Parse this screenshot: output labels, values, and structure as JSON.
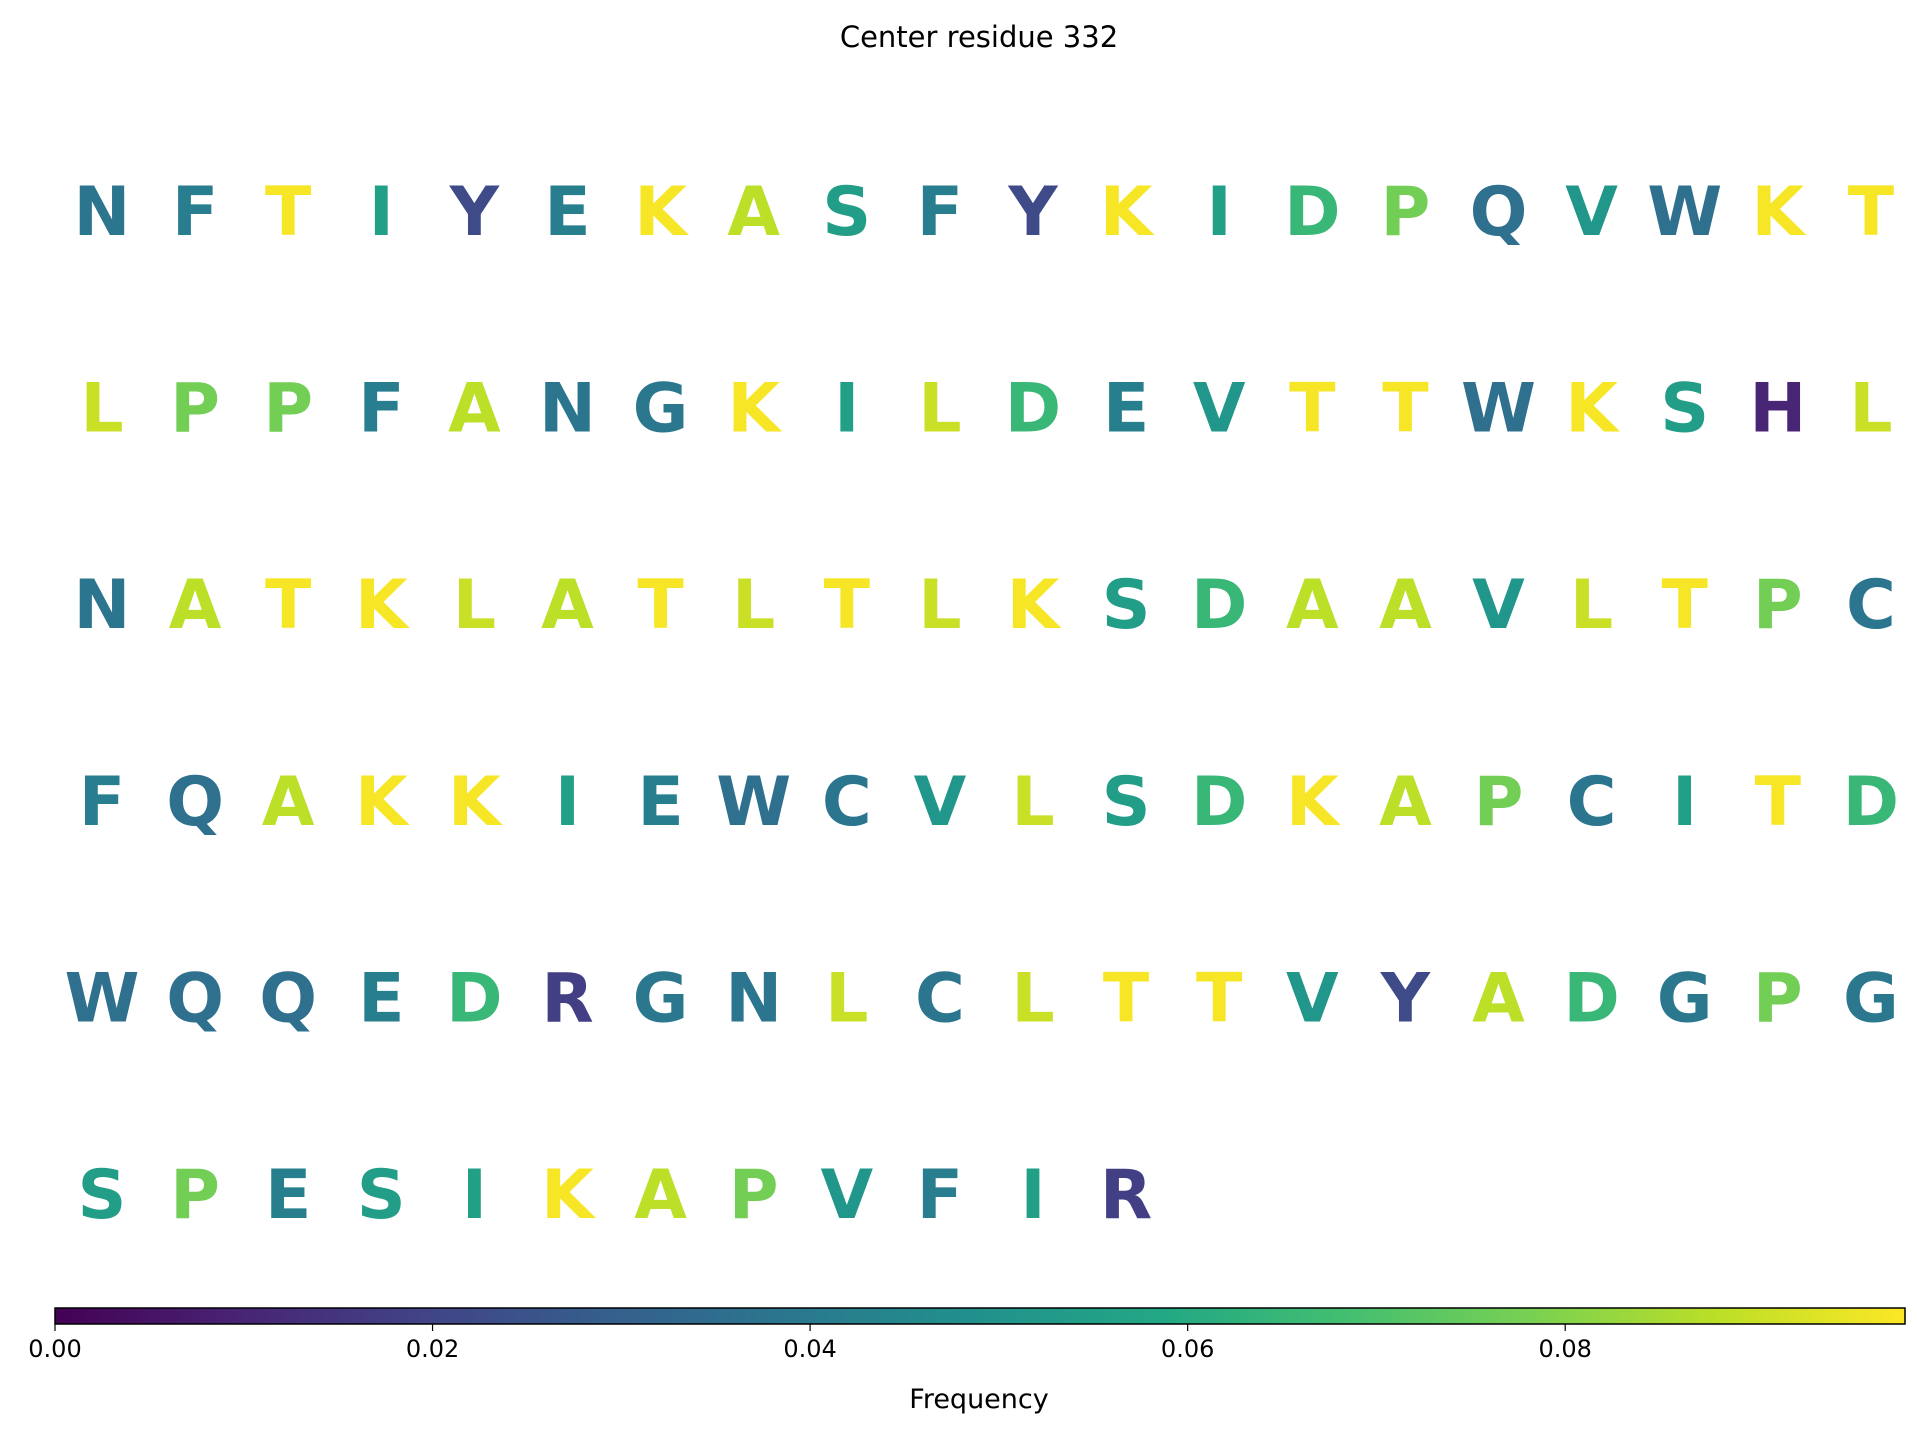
{
  "chart_data": {
    "type": "heatmap",
    "title": "Center residue 332",
    "columns": 20,
    "residues": [
      {
        "aa": "N",
        "value": 0.038
      },
      {
        "aa": "F",
        "value": 0.041
      },
      {
        "aa": "T",
        "value": 0.097
      },
      {
        "aa": "I",
        "value": 0.055
      },
      {
        "aa": "Y",
        "value": 0.022
      },
      {
        "aa": "E",
        "value": 0.042
      },
      {
        "aa": "K",
        "value": 0.097
      },
      {
        "aa": "A",
        "value": 0.088
      },
      {
        "aa": "S",
        "value": 0.054
      },
      {
        "aa": "F",
        "value": 0.041
      },
      {
        "aa": "Y",
        "value": 0.022
      },
      {
        "aa": "K",
        "value": 0.097
      },
      {
        "aa": "I",
        "value": 0.055
      },
      {
        "aa": "D",
        "value": 0.065
      },
      {
        "aa": "P",
        "value": 0.077
      },
      {
        "aa": "Q",
        "value": 0.036
      },
      {
        "aa": "V",
        "value": 0.051
      },
      {
        "aa": "W",
        "value": 0.036
      },
      {
        "aa": "K",
        "value": 0.097
      },
      {
        "aa": "T",
        "value": 0.097
      },
      {
        "aa": "L",
        "value": 0.09
      },
      {
        "aa": "P",
        "value": 0.077
      },
      {
        "aa": "P",
        "value": 0.077
      },
      {
        "aa": "F",
        "value": 0.041
      },
      {
        "aa": "A",
        "value": 0.088
      },
      {
        "aa": "N",
        "value": 0.038
      },
      {
        "aa": "G",
        "value": 0.039
      },
      {
        "aa": "K",
        "value": 0.097
      },
      {
        "aa": "I",
        "value": 0.055
      },
      {
        "aa": "L",
        "value": 0.09
      },
      {
        "aa": "D",
        "value": 0.065
      },
      {
        "aa": "E",
        "value": 0.042
      },
      {
        "aa": "V",
        "value": 0.051
      },
      {
        "aa": "T",
        "value": 0.097
      },
      {
        "aa": "T",
        "value": 0.097
      },
      {
        "aa": "W",
        "value": 0.036
      },
      {
        "aa": "K",
        "value": 0.097
      },
      {
        "aa": "S",
        "value": 0.054
      },
      {
        "aa": "H",
        "value": 0.01
      },
      {
        "aa": "L",
        "value": 0.09
      },
      {
        "aa": "N",
        "value": 0.038
      },
      {
        "aa": "A",
        "value": 0.088
      },
      {
        "aa": "T",
        "value": 0.097
      },
      {
        "aa": "K",
        "value": 0.097
      },
      {
        "aa": "L",
        "value": 0.09
      },
      {
        "aa": "A",
        "value": 0.088
      },
      {
        "aa": "T",
        "value": 0.097
      },
      {
        "aa": "L",
        "value": 0.09
      },
      {
        "aa": "T",
        "value": 0.097
      },
      {
        "aa": "L",
        "value": 0.09
      },
      {
        "aa": "K",
        "value": 0.097
      },
      {
        "aa": "S",
        "value": 0.054
      },
      {
        "aa": "D",
        "value": 0.065
      },
      {
        "aa": "A",
        "value": 0.088
      },
      {
        "aa": "A",
        "value": 0.088
      },
      {
        "aa": "V",
        "value": 0.051
      },
      {
        "aa": "L",
        "value": 0.09
      },
      {
        "aa": "T",
        "value": 0.097
      },
      {
        "aa": "P",
        "value": 0.077
      },
      {
        "aa": "C",
        "value": 0.038
      },
      {
        "aa": "F",
        "value": 0.041
      },
      {
        "aa": "Q",
        "value": 0.036
      },
      {
        "aa": "A",
        "value": 0.088
      },
      {
        "aa": "K",
        "value": 0.097
      },
      {
        "aa": "K",
        "value": 0.097
      },
      {
        "aa": "I",
        "value": 0.055
      },
      {
        "aa": "E",
        "value": 0.042
      },
      {
        "aa": "W",
        "value": 0.036
      },
      {
        "aa": "C",
        "value": 0.038
      },
      {
        "aa": "V",
        "value": 0.051
      },
      {
        "aa": "L",
        "value": 0.09
      },
      {
        "aa": "S",
        "value": 0.054
      },
      {
        "aa": "D",
        "value": 0.065
      },
      {
        "aa": "K",
        "value": 0.097
      },
      {
        "aa": "A",
        "value": 0.088
      },
      {
        "aa": "P",
        "value": 0.077
      },
      {
        "aa": "C",
        "value": 0.038
      },
      {
        "aa": "I",
        "value": 0.055
      },
      {
        "aa": "T",
        "value": 0.097
      },
      {
        "aa": "D",
        "value": 0.065
      },
      {
        "aa": "W",
        "value": 0.036
      },
      {
        "aa": "Q",
        "value": 0.036
      },
      {
        "aa": "Q",
        "value": 0.036
      },
      {
        "aa": "E",
        "value": 0.042
      },
      {
        "aa": "D",
        "value": 0.065
      },
      {
        "aa": "R",
        "value": 0.018
      },
      {
        "aa": "G",
        "value": 0.039
      },
      {
        "aa": "N",
        "value": 0.038
      },
      {
        "aa": "L",
        "value": 0.09
      },
      {
        "aa": "C",
        "value": 0.038
      },
      {
        "aa": "L",
        "value": 0.09
      },
      {
        "aa": "T",
        "value": 0.097
      },
      {
        "aa": "T",
        "value": 0.097
      },
      {
        "aa": "V",
        "value": 0.051
      },
      {
        "aa": "Y",
        "value": 0.022
      },
      {
        "aa": "A",
        "value": 0.088
      },
      {
        "aa": "D",
        "value": 0.065
      },
      {
        "aa": "G",
        "value": 0.039
      },
      {
        "aa": "P",
        "value": 0.077
      },
      {
        "aa": "G",
        "value": 0.039
      },
      {
        "aa": "S",
        "value": 0.054
      },
      {
        "aa": "P",
        "value": 0.077
      },
      {
        "aa": "E",
        "value": 0.042
      },
      {
        "aa": "S",
        "value": 0.054
      },
      {
        "aa": "I",
        "value": 0.055
      },
      {
        "aa": "K",
        "value": 0.097
      },
      {
        "aa": "A",
        "value": 0.088
      },
      {
        "aa": "P",
        "value": 0.077
      },
      {
        "aa": "V",
        "value": 0.051
      },
      {
        "aa": "F",
        "value": 0.041
      },
      {
        "aa": "I",
        "value": 0.055
      },
      {
        "aa": "R",
        "value": 0.018
      }
    ],
    "colorbar": {
      "label": "Frequency",
      "range": [
        0,
        0.098
      ],
      "ticks": [
        0.0,
        0.02,
        0.04,
        0.06,
        0.08
      ],
      "tick_labels": [
        "0.00",
        "0.02",
        "0.04",
        "0.06",
        "0.08"
      ],
      "colormap": "viridis",
      "orientation": "horizontal",
      "placement": "bottom"
    }
  }
}
